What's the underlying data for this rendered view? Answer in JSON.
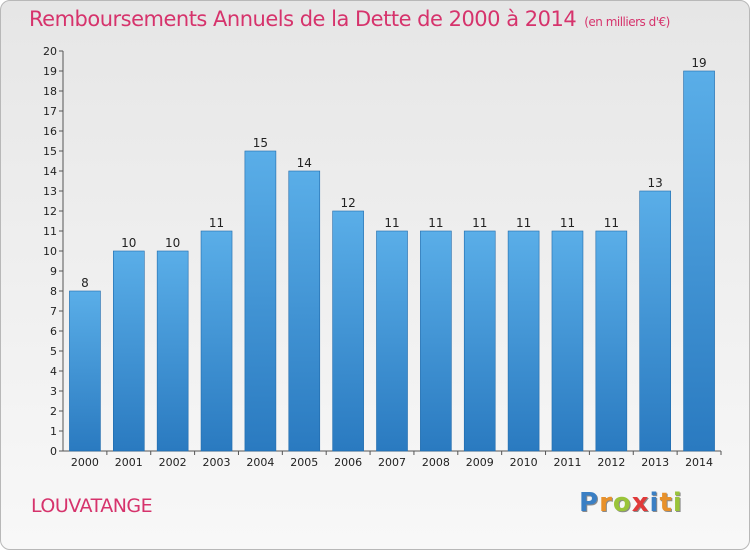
{
  "title": "Remboursements Annuels de la Dette de 2000 à 2014",
  "unit_label": "(en milliers d'€)",
  "place": "LOUVATANGE",
  "logo": {
    "text": "Proxiti",
    "letters": [
      {
        "ch": "P",
        "color": "#3a7fc4"
      },
      {
        "ch": "r",
        "color": "#e8912a"
      },
      {
        "ch": "o",
        "color": "#9ac43a"
      },
      {
        "ch": "x",
        "color": "#e03a3a"
      },
      {
        "ch": "i",
        "color": "#3a7fc4"
      },
      {
        "ch": "t",
        "color": "#e8912a"
      },
      {
        "ch": "i",
        "color": "#9ac43a"
      }
    ]
  },
  "colors": {
    "title": "#d6336c",
    "bar_top": "#5aaee8",
    "bar_bottom": "#2a7ac0",
    "bar_edge": "#1f6aab"
  },
  "chart_data": {
    "type": "bar",
    "title": "Remboursements Annuels de la Dette de 2000 à 2014",
    "unit": "(en milliers d'€)",
    "categories": [
      "2000",
      "2001",
      "2002",
      "2003",
      "2004",
      "2005",
      "2006",
      "2007",
      "2008",
      "2009",
      "2010",
      "2011",
      "2012",
      "2013",
      "2014"
    ],
    "values": [
      8,
      10,
      10,
      11,
      15,
      14,
      12,
      11,
      11,
      11,
      11,
      11,
      11,
      13,
      19
    ],
    "data_labels": [
      "8",
      "10",
      "10",
      "11",
      "15",
      "14",
      "12",
      "11",
      "11",
      "11",
      "11",
      "11",
      "11",
      "13",
      "19"
    ],
    "ylim": [
      0,
      20
    ],
    "yticks": [
      0,
      1,
      2,
      3,
      4,
      5,
      6,
      7,
      8,
      9,
      10,
      11,
      12,
      13,
      14,
      15,
      16,
      17,
      18,
      19,
      20
    ],
    "grid": false,
    "legend": "none"
  }
}
